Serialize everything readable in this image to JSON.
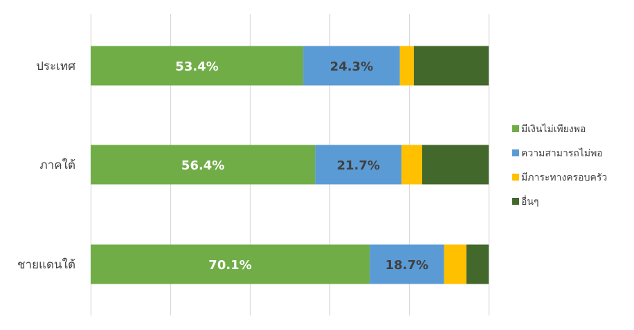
{
  "chart_data": {
    "type": "bar",
    "orientation": "horizontal",
    "stacked": true,
    "percent_stacked": true,
    "categories": [
      "ประเทศ",
      "ภาคใต้",
      "ชายแดนใต้"
    ],
    "series": [
      {
        "name": "มีเงินไม่เพียงพอ",
        "color": "#70AD47",
        "values": [
          53.4,
          56.4,
          70.1
        ],
        "labels": [
          "53.4%",
          "56.4%",
          "70.1%"
        ],
        "label_color": "#ffffff"
      },
      {
        "name": "ความสามารถไม่พอ",
        "color": "#5B9BD5",
        "values": [
          24.3,
          21.7,
          18.7
        ],
        "labels": [
          "24.3%",
          "21.7%",
          "18.7%"
        ],
        "label_color": "#404040"
      },
      {
        "name": "มีภาระทางครอบครัว",
        "color": "#FFC000",
        "values": [
          3.5,
          5.2,
          5.6
        ],
        "labels": [
          "",
          "",
          ""
        ],
        "label_color": "#404040"
      },
      {
        "name": "อื่นๆ",
        "color": "#43682B",
        "values": [
          18.8,
          16.7,
          5.6
        ],
        "labels": [
          "",
          "",
          ""
        ],
        "label_color": "#ffffff"
      }
    ],
    "xlim": [
      0,
      100
    ],
    "grid": true,
    "gridline_color": "#D9D9D9",
    "legend_position": "right"
  }
}
